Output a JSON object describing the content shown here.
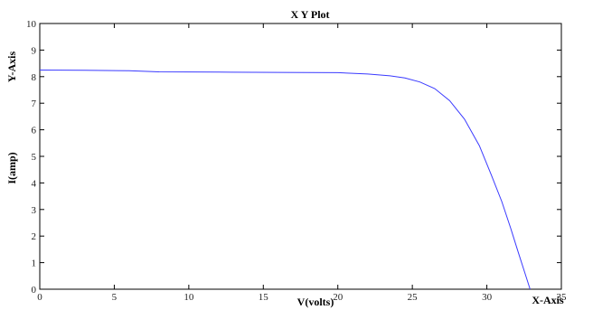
{
  "chart_data": {
    "type": "line",
    "title": "X Y Plot",
    "xlabel": "V(volts)",
    "ylabel": "I(amp)",
    "x_axis_name": "X-Axis",
    "y_axis_name": "Y-Axis",
    "xlim": [
      0,
      35
    ],
    "ylim": [
      0,
      10
    ],
    "x_ticks": [
      0,
      5,
      10,
      15,
      20,
      25,
      30,
      35
    ],
    "y_ticks": [
      0,
      1,
      2,
      3,
      4,
      5,
      6,
      7,
      8,
      9,
      10
    ],
    "grid": false,
    "line_color": "#3a3aff",
    "series": [
      {
        "x": [
          0,
          3,
          6,
          8,
          12,
          16,
          20,
          22,
          23.5,
          24.5,
          25.5,
          26.5,
          27.5,
          28.5,
          29.5,
          30.3,
          31,
          31.6,
          32.1,
          32.5,
          32.9
        ],
        "values": [
          8.25,
          8.24,
          8.22,
          8.18,
          8.17,
          8.16,
          8.15,
          8.1,
          8.03,
          7.95,
          7.8,
          7.55,
          7.1,
          6.4,
          5.4,
          4.3,
          3.3,
          2.3,
          1.4,
          0.7,
          0.0
        ]
      }
    ]
  }
}
